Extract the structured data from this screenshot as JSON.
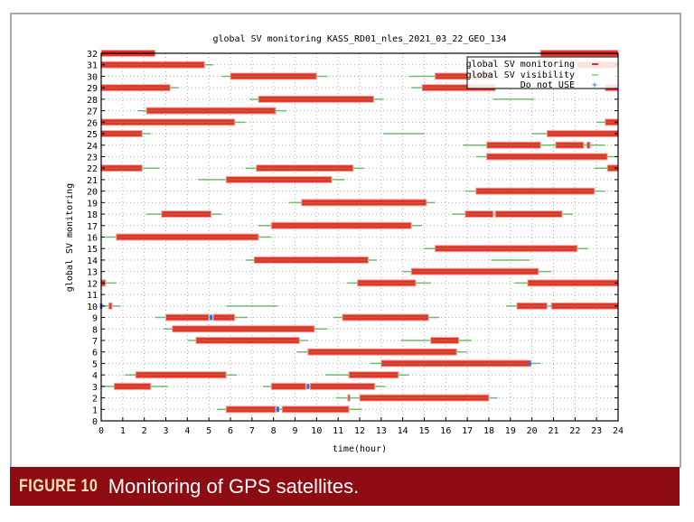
{
  "caption": {
    "label": "FIGURE 10",
    "text": "Monitoring of GPS satellites."
  },
  "chart_data": {
    "type": "timeline",
    "title": "global SV monitoring KASS_RD01_nles_2021_03_22_GEO_134",
    "xlabel": "time(hour)",
    "ylabel": "global SV monitoring",
    "xlim": [
      0,
      24
    ],
    "ylim": [
      0,
      32
    ],
    "xticks": [
      0,
      1,
      2,
      3,
      4,
      5,
      6,
      7,
      8,
      9,
      10,
      11,
      12,
      13,
      14,
      15,
      16,
      17,
      18,
      19,
      20,
      21,
      22,
      23,
      24
    ],
    "yticks": [
      0,
      1,
      2,
      3,
      4,
      5,
      6,
      7,
      8,
      9,
      10,
      11,
      12,
      13,
      14,
      15,
      16,
      17,
      18,
      19,
      20,
      21,
      22,
      23,
      24,
      25,
      26,
      27,
      28,
      29,
      30,
      31,
      32
    ],
    "grid": true,
    "legend_position": "top-right",
    "legend": [
      {
        "name": "global SV monitoring",
        "color": "#e8302a"
      },
      {
        "name": "global SV visibility",
        "color": "#4caf50"
      },
      {
        "name": "Do not USE",
        "color": "#3b6fd8"
      }
    ],
    "rows": [
      {
        "prn": 32,
        "monitoring": [
          [
            0,
            2.5
          ],
          [
            20.4,
            24
          ]
        ],
        "visibility": [],
        "do_not_use": []
      },
      {
        "prn": 31,
        "monitoring": [
          [
            0,
            4.8
          ],
          [
            22.1,
            24
          ]
        ],
        "visibility": [
          [
            0,
            5.2
          ],
          [
            21.5,
            24
          ]
        ],
        "do_not_use": []
      },
      {
        "prn": 30,
        "monitoring": [
          [
            6.0,
            10.0
          ],
          [
            15.5,
            18.2
          ]
        ],
        "visibility": [
          [
            5.6,
            10.5
          ],
          [
            14.3,
            18.5
          ]
        ],
        "do_not_use": []
      },
      {
        "prn": 29,
        "monitoring": [
          [
            0,
            3.2
          ],
          [
            14.9,
            18.3
          ],
          [
            23.4,
            24
          ]
        ],
        "visibility": [
          [
            0,
            3.6
          ],
          [
            14.4,
            18.9
          ],
          [
            23.2,
            24
          ]
        ],
        "do_not_use": []
      },
      {
        "prn": 28,
        "monitoring": [
          [
            7.3,
            12.65
          ]
        ],
        "visibility": [
          [
            6.9,
            13.1
          ],
          [
            18.2,
            20.1
          ]
        ],
        "do_not_use": []
      },
      {
        "prn": 27,
        "monitoring": [
          [
            2.1,
            8.1
          ]
        ],
        "visibility": [
          [
            1.7,
            8.6
          ]
        ],
        "do_not_use": []
      },
      {
        "prn": 26,
        "monitoring": [
          [
            0,
            6.2
          ],
          [
            23.4,
            24
          ]
        ],
        "visibility": [
          [
            0,
            6.7
          ],
          [
            23.0,
            24
          ]
        ],
        "do_not_use": []
      },
      {
        "prn": 25,
        "monitoring": [
          [
            0,
            1.9
          ],
          [
            20.7,
            24
          ]
        ],
        "visibility": [
          [
            0,
            2.3
          ],
          [
            13.1,
            15.0
          ],
          [
            20.0,
            24
          ]
        ],
        "do_not_use": []
      },
      {
        "prn": 24,
        "monitoring": [
          [
            17.9,
            20.4
          ],
          [
            21.1,
            22.4
          ],
          [
            22.55,
            22.7
          ]
        ],
        "visibility": [
          [
            16.8,
            23.4
          ]
        ],
        "do_not_use": []
      },
      {
        "prn": 23,
        "monitoring": [
          [
            17.9,
            23.5
          ]
        ],
        "visibility": [
          [
            17.4,
            24
          ]
        ],
        "do_not_use": []
      },
      {
        "prn": 22,
        "monitoring": [
          [
            0,
            1.9
          ],
          [
            7.2,
            11.7
          ],
          [
            23.5,
            24
          ]
        ],
        "visibility": [
          [
            0,
            2.7
          ],
          [
            6.7,
            12.2
          ],
          [
            22.9,
            24
          ]
        ],
        "do_not_use": []
      },
      {
        "prn": 21,
        "monitoring": [
          [
            5.8,
            10.7
          ]
        ],
        "visibility": [
          [
            4.5,
            11.3
          ]
        ],
        "do_not_use": []
      },
      {
        "prn": 20,
        "monitoring": [
          [
            17.4,
            22.9
          ]
        ],
        "visibility": [
          [
            16.9,
            23.4
          ]
        ],
        "do_not_use": []
      },
      {
        "prn": 19,
        "monitoring": [
          [
            9.3,
            15.1
          ]
        ],
        "visibility": [
          [
            8.7,
            15.5
          ]
        ],
        "do_not_use": []
      },
      {
        "prn": 18,
        "monitoring": [
          [
            2.8,
            5.1
          ],
          [
            16.9,
            18.2
          ],
          [
            18.3,
            21.4
          ]
        ],
        "visibility": [
          [
            2.1,
            5.6
          ],
          [
            16.3,
            21.9
          ]
        ],
        "do_not_use": []
      },
      {
        "prn": 17,
        "monitoring": [
          [
            7.9,
            14.4
          ]
        ],
        "visibility": [
          [
            7.3,
            14.9
          ]
        ],
        "do_not_use": []
      },
      {
        "prn": 16,
        "monitoring": [
          [
            0.7,
            7.3
          ]
        ],
        "visibility": [
          [
            0.2,
            7.9
          ]
        ],
        "do_not_use": []
      },
      {
        "prn": 15,
        "monitoring": [
          [
            15.5,
            22.1
          ]
        ],
        "visibility": [
          [
            15.0,
            22.6
          ]
        ],
        "do_not_use": []
      },
      {
        "prn": 14,
        "monitoring": [
          [
            7.1,
            12.4
          ]
        ],
        "visibility": [
          [
            6.7,
            12.8
          ],
          [
            18.1,
            19.9
          ]
        ],
        "do_not_use": []
      },
      {
        "prn": 13,
        "monitoring": [
          [
            14.4,
            20.3
          ]
        ],
        "visibility": [
          [
            14.0,
            20.9
          ]
        ],
        "do_not_use": []
      },
      {
        "prn": 12,
        "monitoring": [
          [
            0,
            0.2
          ],
          [
            11.9,
            14.6
          ],
          [
            19.8,
            24
          ]
        ],
        "visibility": [
          [
            0,
            0.7
          ],
          [
            11.4,
            15.3
          ],
          [
            19.2,
            24
          ]
        ],
        "do_not_use": []
      },
      {
        "prn": 11,
        "monitoring": [],
        "visibility": [],
        "do_not_use": []
      },
      {
        "prn": 10,
        "monitoring": [
          [
            0.35,
            0.5
          ],
          [
            19.3,
            20.7
          ],
          [
            20.9,
            24
          ]
        ],
        "visibility": [
          [
            0,
            0.9
          ],
          [
            5.8,
            8.2
          ],
          [
            18.8,
            24
          ]
        ],
        "do_not_use": [
          0
        ]
      },
      {
        "prn": 9,
        "monitoring": [
          [
            3.0,
            5.0
          ],
          [
            5.2,
            6.2
          ],
          [
            11.2,
            15.2
          ]
        ],
        "visibility": [
          [
            2.5,
            6.8
          ],
          [
            10.8,
            15.7
          ]
        ],
        "do_not_use": [
          5.1
        ]
      },
      {
        "prn": 8,
        "monitoring": [
          [
            3.3,
            9.9
          ]
        ],
        "visibility": [
          [
            2.9,
            10.5
          ]
        ],
        "do_not_use": []
      },
      {
        "prn": 7,
        "monitoring": [
          [
            4.4,
            9.2
          ],
          [
            15.3,
            16.6
          ]
        ],
        "visibility": [
          [
            4.0,
            9.6
          ],
          [
            13.9,
            17.2
          ]
        ],
        "do_not_use": []
      },
      {
        "prn": 6,
        "monitoring": [
          [
            9.6,
            16.5
          ]
        ],
        "visibility": [
          [
            9.1,
            17.0
          ]
        ],
        "do_not_use": []
      },
      {
        "prn": 5,
        "monitoring": [
          [
            13.0,
            19.9
          ]
        ],
        "visibility": [
          [
            12.5,
            20.4
          ]
        ],
        "do_not_use": [
          19.9
        ]
      },
      {
        "prn": 4,
        "monitoring": [
          [
            1.6,
            5.8
          ],
          [
            11.5,
            13.8
          ]
        ],
        "visibility": [
          [
            1.1,
            6.3
          ],
          [
            10.4,
            14.3
          ]
        ],
        "do_not_use": []
      },
      {
        "prn": 3,
        "monitoring": [
          [
            0.6,
            2.3
          ],
          [
            7.9,
            9.5
          ],
          [
            9.7,
            12.7
          ]
        ],
        "visibility": [
          [
            0,
            3.1
          ],
          [
            7.5,
            13.2
          ],
          [
            23.9,
            24
          ]
        ],
        "do_not_use": [
          9.6
        ]
      },
      {
        "prn": 2,
        "monitoring": [
          [
            11.45,
            11.55
          ],
          [
            12.0,
            18.0
          ]
        ],
        "visibility": [
          [
            10.9,
            18.4
          ]
        ],
        "do_not_use": []
      },
      {
        "prn": 1,
        "monitoring": [
          [
            5.8,
            8.1
          ],
          [
            8.4,
            11.5
          ]
        ],
        "visibility": [
          [
            5.4,
            12.1
          ]
        ],
        "do_not_use": [
          8.2
        ]
      }
    ]
  }
}
